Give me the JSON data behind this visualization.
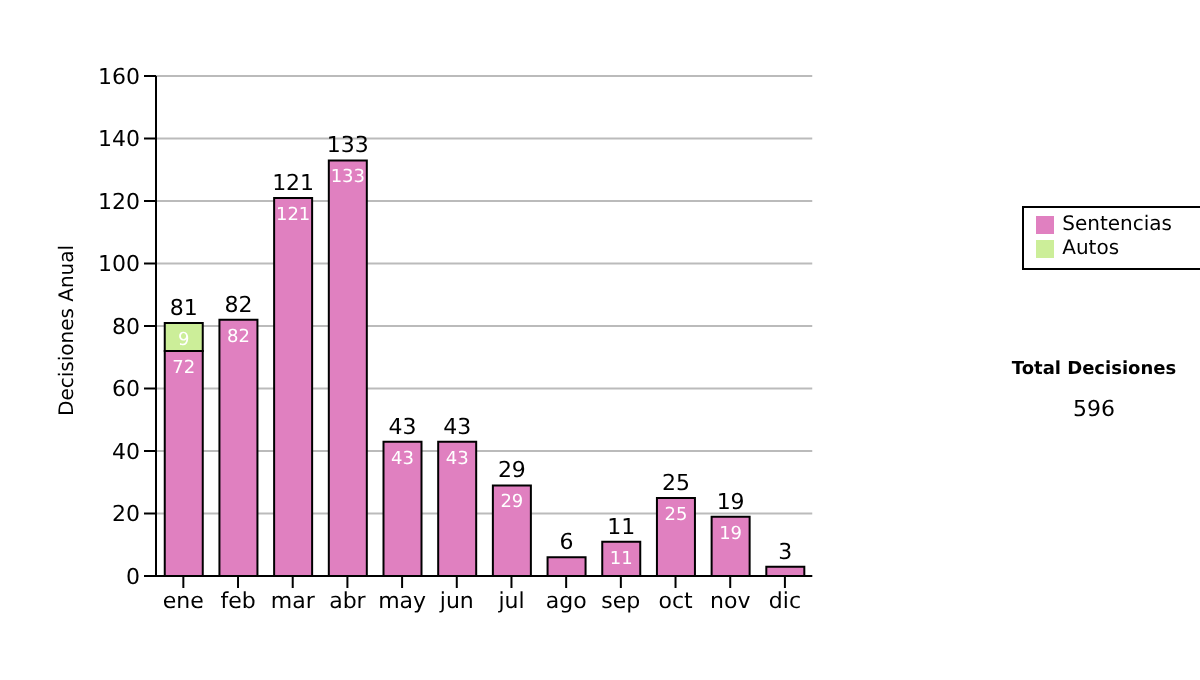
{
  "chart_data": {
    "type": "bar",
    "stacked": true,
    "ylabel": "Decisiones Anual",
    "categories": [
      "ene",
      "feb",
      "mar",
      "abr",
      "may",
      "jun",
      "jul",
      "ago",
      "sep",
      "oct",
      "nov",
      "dic"
    ],
    "series": [
      {
        "name": "Sentencias",
        "color": "#e080c0",
        "values": [
          72,
          82,
          121,
          133,
          43,
          43,
          29,
          6,
          11,
          25,
          19,
          3
        ],
        "value_labels": [
          "72",
          "82",
          "121",
          "133",
          "43",
          "43",
          "29",
          null,
          "11",
          "25",
          "19",
          null
        ]
      },
      {
        "name": "Autos",
        "color": "#ccee99",
        "values": [
          9,
          0,
          0,
          0,
          0,
          0,
          0,
          0,
          0,
          0,
          0,
          0
        ],
        "value_labels": [
          "9",
          null,
          null,
          null,
          null,
          null,
          null,
          null,
          null,
          null,
          null,
          null
        ]
      }
    ],
    "totals": [
      "81",
      "82",
      "121",
      "133",
      "43",
      "43",
      "29",
      "6",
      "11",
      "25",
      "19",
      "3"
    ],
    "ylim": [
      0,
      160
    ],
    "yticks": [
      0,
      20,
      40,
      60,
      80,
      100,
      120,
      140,
      160
    ],
    "grid": "y",
    "legend": "right",
    "annotations": [
      "Total Decisiones",
      "596"
    ]
  }
}
